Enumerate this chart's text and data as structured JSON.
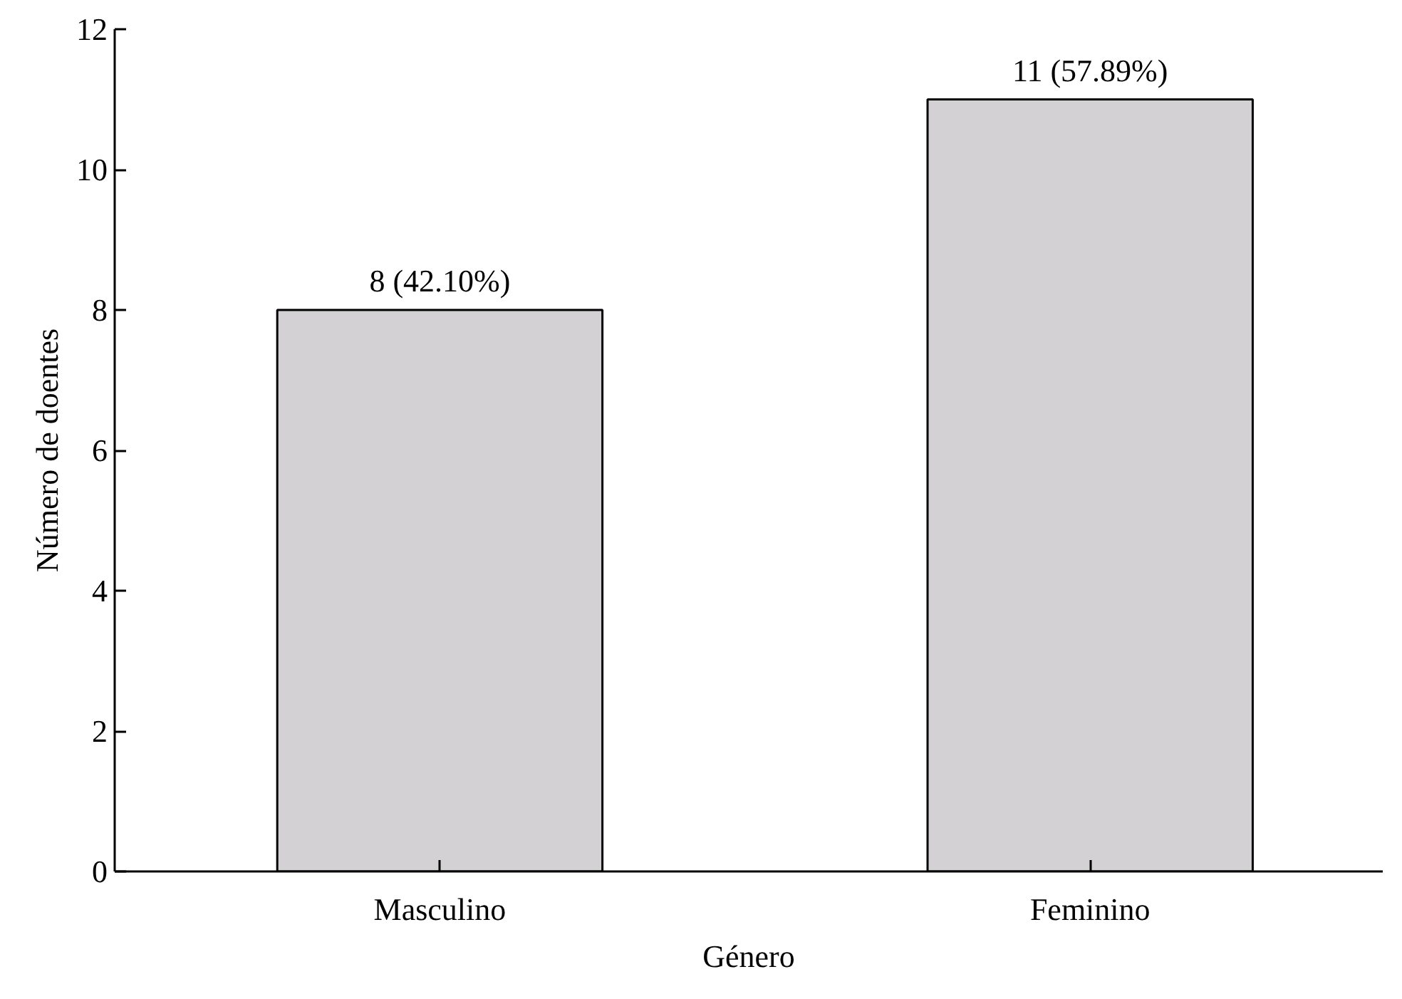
{
  "chart_data": {
    "type": "bar",
    "xlabel": "Género",
    "ylabel": "Número de doentes",
    "categories": [
      "Masculino",
      "Feminino"
    ],
    "values": [
      8,
      11
    ],
    "value_labels": [
      "8 (42.10%)",
      "11 (57.89%)"
    ],
    "color": "#d3d1d3",
    "ylim": [
      0,
      12
    ],
    "yticks": [
      0,
      2,
      4,
      6,
      8,
      10,
      12
    ],
    "grid": false
  }
}
